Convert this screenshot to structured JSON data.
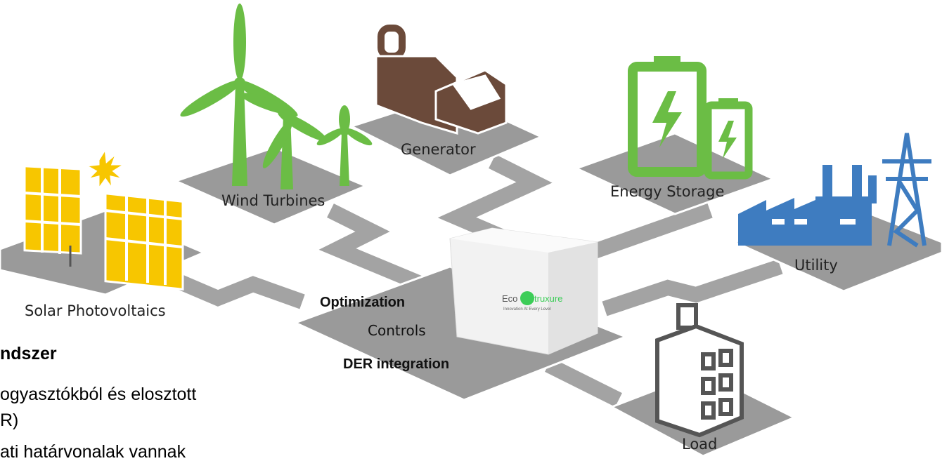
{
  "nodes": [
    {
      "label": "Solar Photovoltaics"
    },
    {
      "label": "Wind Turbines"
    },
    {
      "label": "Generator"
    },
    {
      "label": "Energy Storage"
    },
    {
      "label": "Utility"
    },
    {
      "label": "Load"
    }
  ],
  "center": {
    "logo_prefix": "Eco",
    "logo_suffix": "truxure",
    "tagline": "Innovation At Every Level"
  },
  "functions": [
    "Optimization",
    "Controls",
    "DER integration"
  ],
  "side_text": {
    "heading": "ndszer",
    "lines": [
      "ogyasztókból és elosztott",
      "R)",
      "ati határvonalak vannak"
    ]
  }
}
